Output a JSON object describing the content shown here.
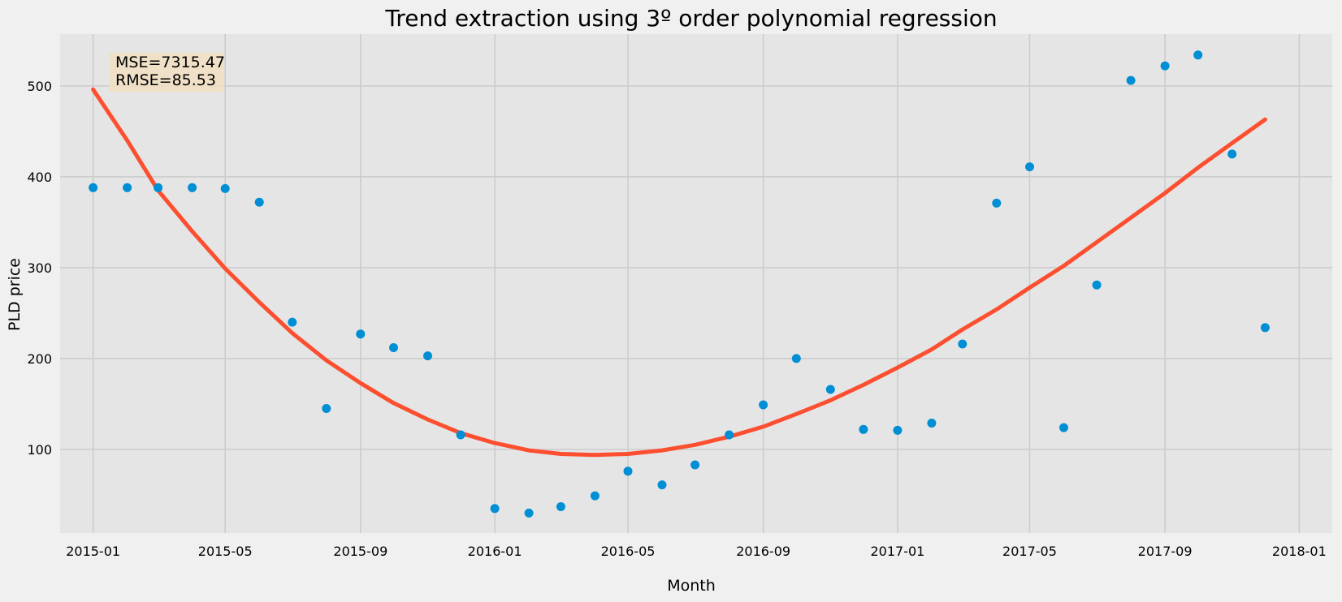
{
  "chart_data": {
    "type": "scatter",
    "title": "Trend extraction using 3º order polynomial regression",
    "xlabel": "Month",
    "ylabel": "PLD price",
    "xlim": [
      "2014-12-02",
      "2018-01-31"
    ],
    "ylim": [
      8,
      557
    ],
    "x_ticks": [
      "2015-01",
      "2015-05",
      "2015-09",
      "2016-01",
      "2016-05",
      "2016-09",
      "2017-01",
      "2017-05",
      "2017-09",
      "2018-01"
    ],
    "y_ticks": [
      100,
      200,
      300,
      400,
      500
    ],
    "grid": true,
    "colors": {
      "figure_bg": "#f0f0f0",
      "plot_bg": "#e5e5e5",
      "grid": "#cbcbcb",
      "points": "#008fd5",
      "trend": "#fc4f30",
      "annotation_box": "#f2dfc2"
    },
    "annotation": {
      "lines": [
        "MSE=7315.47",
        "RMSE=85.53"
      ],
      "position": "top-left"
    },
    "series": [
      {
        "kind": "scatter",
        "x": [
          "2015-01",
          "2015-02",
          "2015-03",
          "2015-04",
          "2015-05",
          "2015-06",
          "2015-07",
          "2015-08",
          "2015-09",
          "2015-10",
          "2015-11",
          "2015-12",
          "2016-01",
          "2016-02",
          "2016-03",
          "2016-04",
          "2016-05",
          "2016-06",
          "2016-07",
          "2016-08",
          "2016-09",
          "2016-10",
          "2016-11",
          "2016-12",
          "2017-01",
          "2017-02",
          "2017-03",
          "2017-04",
          "2017-05",
          "2017-06",
          "2017-07",
          "2017-08",
          "2017-09",
          "2017-10",
          "2017-11",
          "2017-12"
        ],
        "y": [
          388,
          388,
          388,
          388,
          387,
          372,
          240,
          145,
          227,
          212,
          203,
          116,
          35,
          30,
          37,
          49,
          76,
          61,
          83,
          116,
          149,
          200,
          166,
          122,
          121,
          129,
          216,
          371,
          411,
          124,
          281,
          506,
          522,
          534,
          425,
          234
        ]
      },
      {
        "kind": "line",
        "x": [
          "2015-01",
          "2015-02",
          "2015-03",
          "2015-04",
          "2015-05",
          "2015-06",
          "2015-07",
          "2015-08",
          "2015-09",
          "2015-10",
          "2015-11",
          "2015-12",
          "2016-01",
          "2016-02",
          "2016-03",
          "2016-04",
          "2016-05",
          "2016-06",
          "2016-07",
          "2016-08",
          "2016-09",
          "2016-10",
          "2016-11",
          "2016-12",
          "2017-01",
          "2017-02",
          "2017-03",
          "2017-04",
          "2017-05",
          "2017-06",
          "2017-07",
          "2017-08",
          "2017-09",
          "2017-10",
          "2017-11",
          "2017-12"
        ],
        "y": [
          496,
          440,
          385,
          340,
          299,
          262,
          228,
          198,
          173,
          151,
          133,
          118,
          107,
          99,
          95,
          94,
          95,
          99,
          105,
          114,
          125,
          139,
          154,
          171,
          190,
          210,
          232,
          254,
          278,
          302,
          328,
          355,
          382,
          410,
          437,
          463
        ]
      }
    ]
  }
}
